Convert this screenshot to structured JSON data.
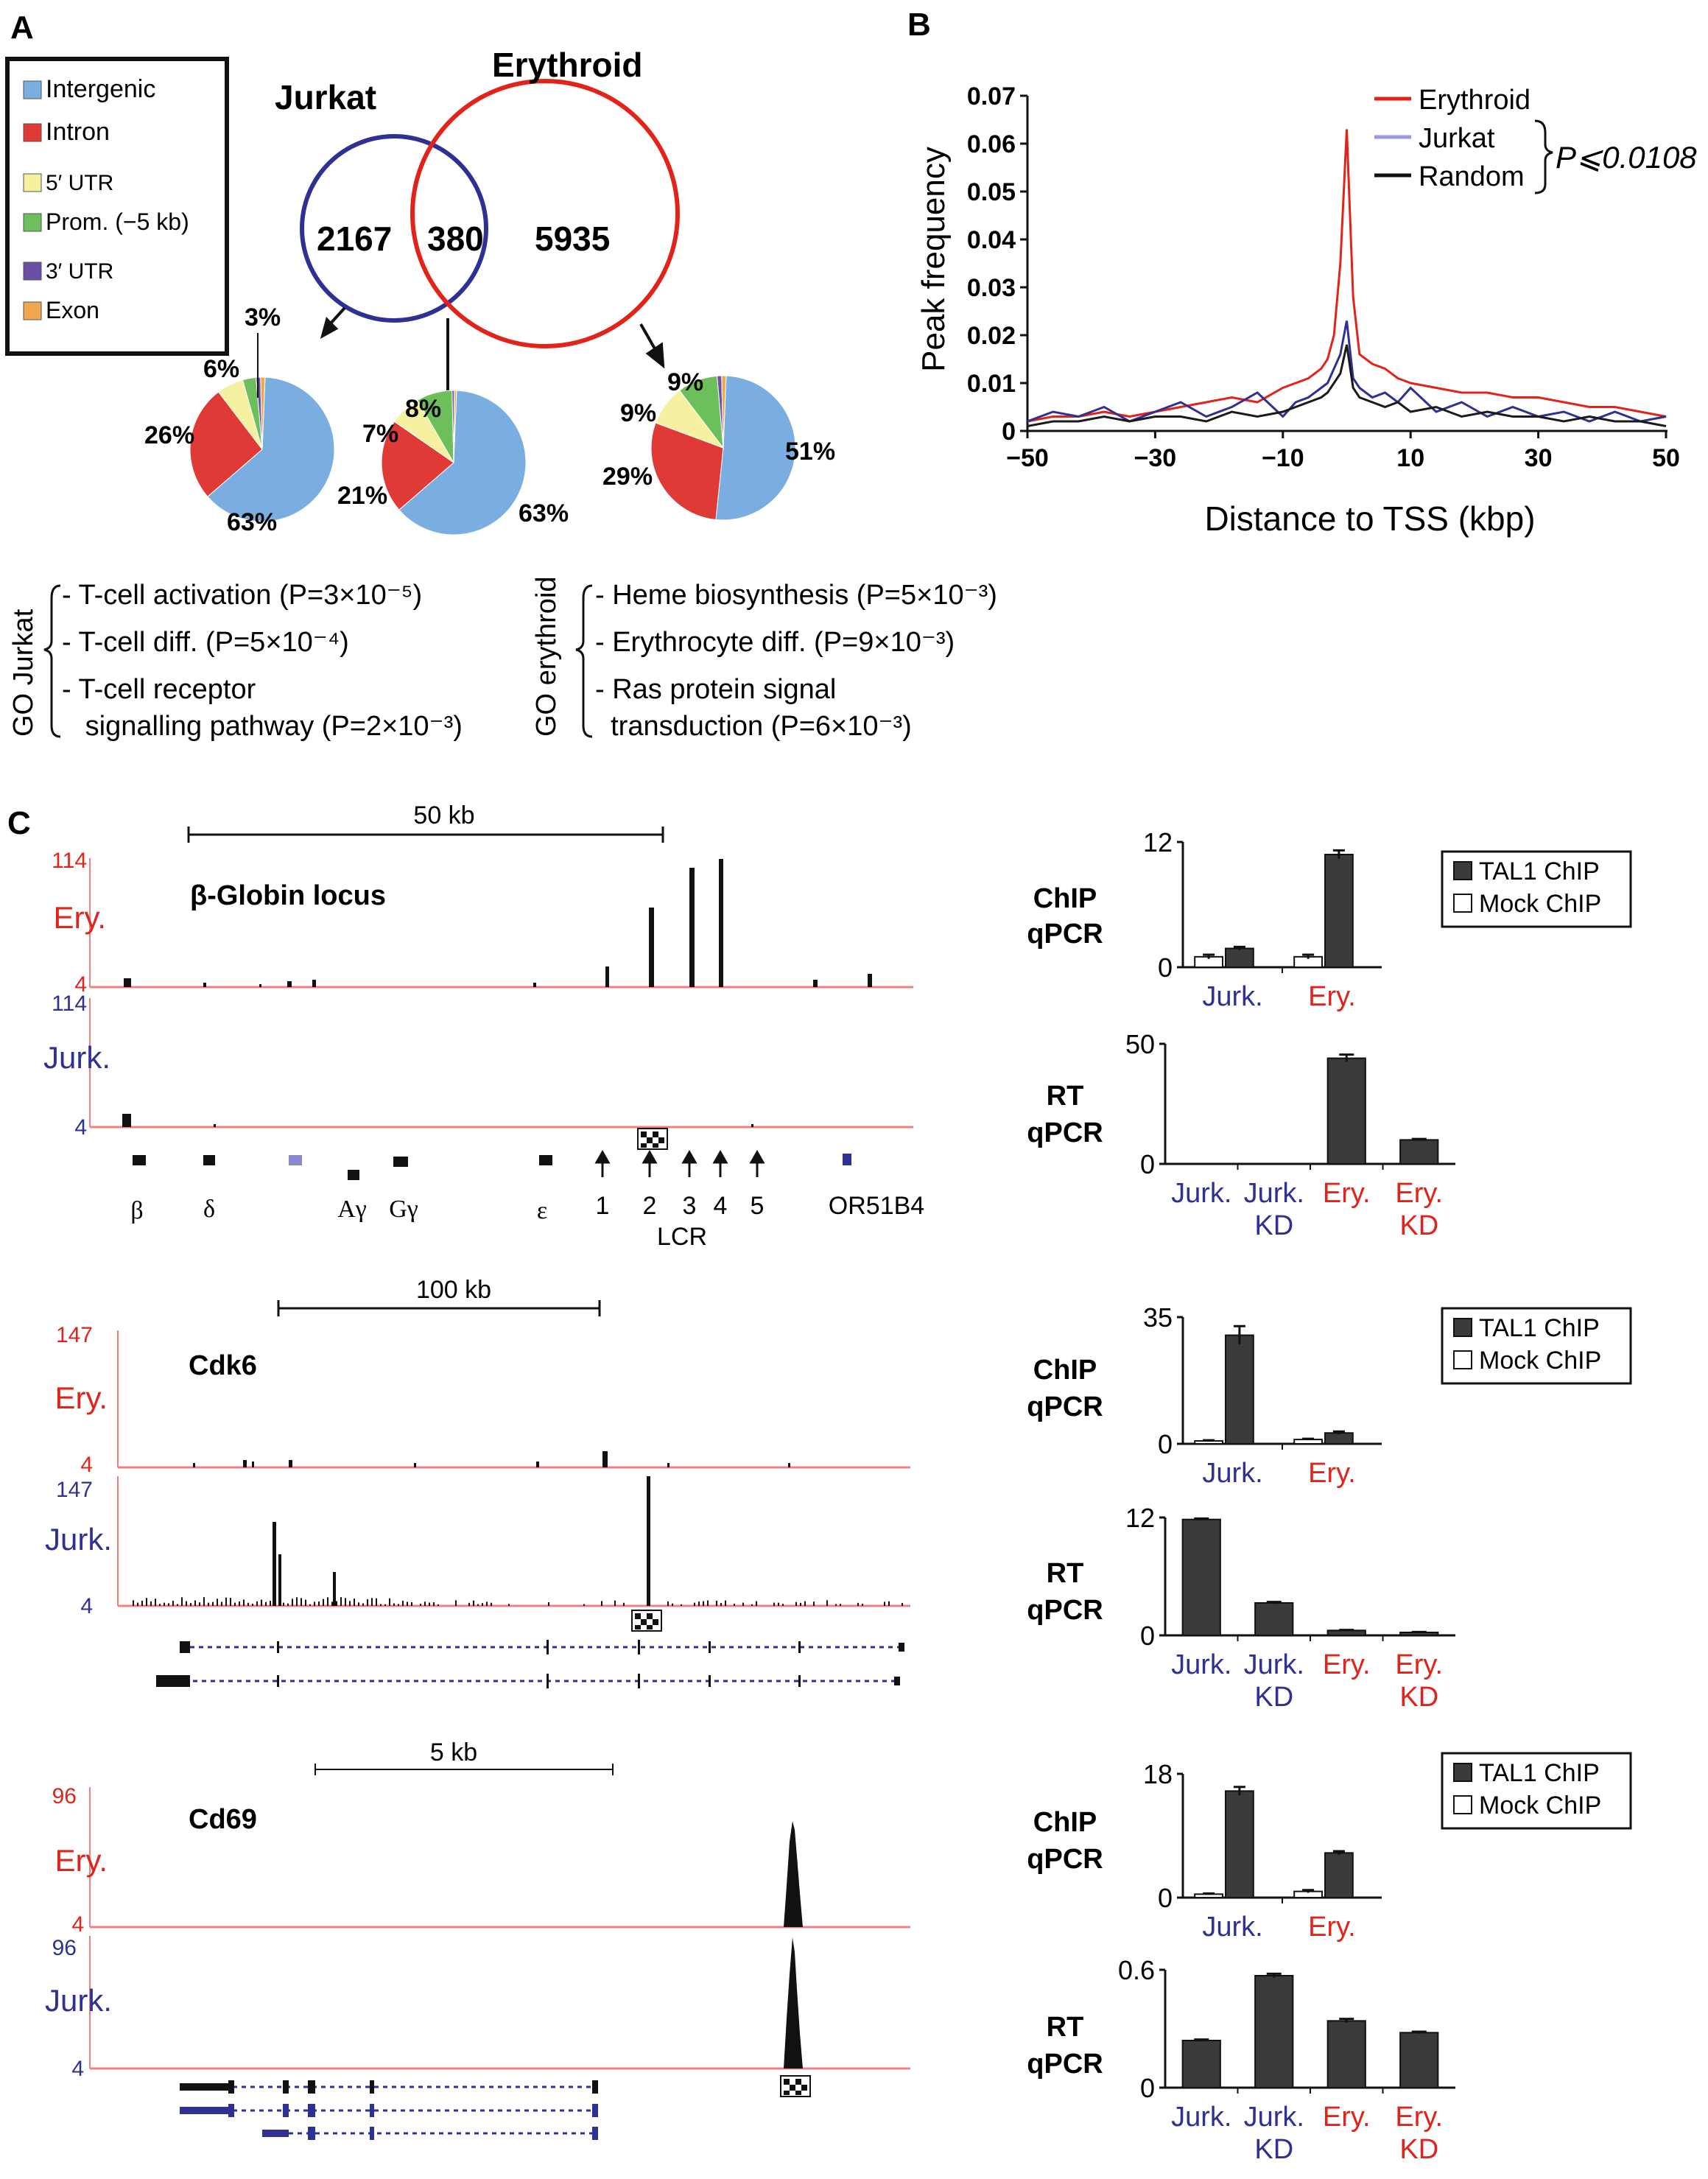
{
  "colors": {
    "intergenic": "#7aaee0",
    "intron": "#e03a36",
    "utr5": "#f5f1a0",
    "prom": "#6cbf5a",
    "utr3": "#6a4fa6",
    "exon": "#f0a850",
    "ery_red": "#e2231a",
    "jurk_blue": "#2e3192",
    "jurk_lav": "#9999dd",
    "dark": "#1a1a1a",
    "bar_dark": "#3a3a3a",
    "track_line": "#f08080"
  },
  "panelA": {
    "letter": "A",
    "legend": [
      {
        "label": "Intergenic",
        "color_key": "intergenic"
      },
      {
        "label": "Intron",
        "color_key": "intron"
      },
      {
        "label": "5′ UTR",
        "color_key": "utr5"
      },
      {
        "label": "Prom. (−5 kb)",
        "color_key": "prom"
      },
      {
        "label": "3′ UTR",
        "color_key": "utr3"
      },
      {
        "label": "Exon",
        "color_key": "exon"
      }
    ],
    "venn": {
      "left_label": "Jurkat",
      "right_label": "Erythroid",
      "left_only": "2167",
      "overlap": "380",
      "right_only": "5935"
    },
    "pies": [
      {
        "name": "jurkat",
        "slices": [
          {
            "key": "intergenic",
            "value": 63
          },
          {
            "key": "intron",
            "value": 26
          },
          {
            "key": "utr5",
            "value": 6
          },
          {
            "key": "prom",
            "value": 3
          },
          {
            "key": "utr3",
            "value": 1
          },
          {
            "key": "exon",
            "value": 1
          }
        ],
        "labels": [
          "63%",
          "26%",
          "6%",
          "3%"
        ]
      },
      {
        "name": "overlap",
        "slices": [
          {
            "key": "intergenic",
            "value": 63
          },
          {
            "key": "intron",
            "value": 21
          },
          {
            "key": "utr5",
            "value": 7
          },
          {
            "key": "prom",
            "value": 8
          },
          {
            "key": "utr3",
            "value": 0.5
          },
          {
            "key": "exon",
            "value": 0.5
          }
        ],
        "labels": [
          "63%",
          "21%",
          "7%",
          "8%"
        ]
      },
      {
        "name": "erythroid",
        "slices": [
          {
            "key": "intergenic",
            "value": 51
          },
          {
            "key": "intron",
            "value": 29
          },
          {
            "key": "utr5",
            "value": 9
          },
          {
            "key": "prom",
            "value": 9
          },
          {
            "key": "utr3",
            "value": 1
          },
          {
            "key": "exon",
            "value": 1
          }
        ],
        "labels": [
          "51%",
          "29%",
          "9%",
          "9%"
        ]
      }
    ],
    "go_jurkat": {
      "title": "GO Jurkat",
      "items": [
        "- T-cell activation (P=3×10⁻⁵)",
        "- T-cell diff.  (P=5×10⁻⁴)",
        "- T-cell receptor",
        "   signalling pathway (P=2×10⁻³)"
      ]
    },
    "go_ery": {
      "title": "GO erythroid",
      "items": [
        "- Heme biosynthesis (P=5×10⁻³)",
        "- Erythrocyte diff. (P=9×10⁻³)",
        "- Ras protein signal",
        "  transduction (P=6×10⁻³)"
      ]
    }
  },
  "chart_data": [
    {
      "panel": "B",
      "type": "line",
      "xlabel": "Distance to TSS (kbp)",
      "ylabel": "Peak frequency",
      "xlim": [
        -50,
        50
      ],
      "ylim": [
        0,
        0.07
      ],
      "xticks": [
        "−50",
        "−30",
        "−10",
        "10",
        "30",
        "50"
      ],
      "yticks": [
        "0",
        "0.01",
        "0.02",
        "0.03",
        "0.04",
        "0.05",
        "0.06",
        "0.07"
      ],
      "annotation": "P⩽0.0108",
      "legend_pos": "top-right",
      "x": [
        -50,
        -46,
        -42,
        -38,
        -34,
        -30,
        -26,
        -22,
        -18,
        -14,
        -10,
        -8,
        -6,
        -4,
        -3,
        -2,
        -1,
        0,
        1,
        2,
        4,
        6,
        8,
        10,
        14,
        18,
        22,
        26,
        30,
        34,
        38,
        42,
        46,
        50
      ],
      "series": [
        {
          "name": "Erythroid",
          "color_key": "ery_red",
          "values": [
            0.002,
            0.003,
            0.003,
            0.004,
            0.003,
            0.004,
            0.005,
            0.006,
            0.007,
            0.006,
            0.009,
            0.01,
            0.011,
            0.013,
            0.015,
            0.02,
            0.035,
            0.063,
            0.028,
            0.016,
            0.014,
            0.013,
            0.011,
            0.01,
            0.009,
            0.008,
            0.008,
            0.007,
            0.007,
            0.006,
            0.005,
            0.005,
            0.004,
            0.003
          ]
        },
        {
          "name": "Jurkat",
          "color_key": "jurk_blue",
          "values": [
            0.002,
            0.004,
            0.003,
            0.005,
            0.002,
            0.004,
            0.006,
            0.003,
            0.005,
            0.008,
            0.003,
            0.006,
            0.007,
            0.009,
            0.01,
            0.013,
            0.016,
            0.023,
            0.011,
            0.009,
            0.007,
            0.008,
            0.006,
            0.009,
            0.004,
            0.006,
            0.003,
            0.005,
            0.003,
            0.004,
            0.002,
            0.004,
            0.002,
            0.003
          ]
        },
        {
          "name": "Random",
          "color_key": "dark",
          "values": [
            0.001,
            0.002,
            0.002,
            0.003,
            0.002,
            0.003,
            0.003,
            0.002,
            0.004,
            0.003,
            0.004,
            0.005,
            0.006,
            0.007,
            0.008,
            0.01,
            0.012,
            0.018,
            0.009,
            0.007,
            0.006,
            0.005,
            0.006,
            0.004,
            0.005,
            0.003,
            0.004,
            0.003,
            0.003,
            0.002,
            0.003,
            0.002,
            0.002,
            0.001
          ]
        }
      ]
    },
    {
      "panel": "C",
      "name": "globin_chip",
      "type": "bar",
      "ylabel": "ChIP qPCR",
      "ylim": [
        0,
        12
      ],
      "yticks": [
        "0",
        "12"
      ],
      "categories": [
        "Jurk.",
        "Ery."
      ],
      "series": [
        {
          "name": "TAL1 ChIP",
          "values": [
            1.8,
            10.8
          ],
          "err": [
            0.15,
            0.4
          ]
        },
        {
          "name": "Mock ChIP",
          "values": [
            1.0,
            1.0
          ],
          "err": [
            0.2,
            0.2
          ]
        }
      ]
    },
    {
      "panel": "C",
      "name": "globin_rt",
      "type": "bar",
      "ylabel": "RT qPCR",
      "ylim": [
        0,
        50
      ],
      "yticks": [
        "0",
        "50"
      ],
      "categories": [
        "Jurk.",
        "Jurk. KD",
        "Ery.",
        "Ery. KD"
      ],
      "values": [
        0,
        0,
        44,
        10
      ],
      "err": [
        0,
        0,
        1.5,
        0.4
      ]
    },
    {
      "panel": "C",
      "name": "cdk6_chip",
      "type": "bar",
      "ylabel": "ChIP qPCR",
      "ylim": [
        0,
        35
      ],
      "yticks": [
        "0",
        "35"
      ],
      "categories": [
        "Jurk.",
        "Ery."
      ],
      "series": [
        {
          "name": "TAL1 ChIP",
          "values": [
            30,
            3
          ],
          "err": [
            2.5,
            0.4
          ]
        },
        {
          "name": "Mock ChIP",
          "values": [
            0.8,
            1.2
          ],
          "err": [
            0.2,
            0.2
          ]
        }
      ]
    },
    {
      "panel": "C",
      "name": "cdk6_rt",
      "type": "bar",
      "ylabel": "RT qPCR",
      "ylim": [
        0,
        12
      ],
      "yticks": [
        "0",
        "12"
      ],
      "categories": [
        "Jurk.",
        "Jurk. KD",
        "Ery.",
        "Ery. KD"
      ],
      "values": [
        11.8,
        3.3,
        0.5,
        0.3
      ],
      "err": [
        0.1,
        0.1,
        0.05,
        0.05
      ]
    },
    {
      "panel": "C",
      "name": "cd69_chip",
      "type": "bar",
      "ylabel": "ChIP qPCR",
      "ylim": [
        0,
        18
      ],
      "yticks": [
        "0",
        "18"
      ],
      "categories": [
        "Jurk.",
        "Ery."
      ],
      "series": [
        {
          "name": "TAL1 ChIP",
          "values": [
            15.5,
            6.5
          ],
          "err": [
            0.6,
            0.25
          ]
        },
        {
          "name": "Mock ChIP",
          "values": [
            0.5,
            0.9
          ],
          "err": [
            0.1,
            0.2
          ]
        }
      ]
    },
    {
      "panel": "C",
      "name": "cd69_rt",
      "type": "bar",
      "ylabel": "RT qPCR",
      "ylim": [
        0,
        0.6
      ],
      "yticks": [
        "0",
        "0.6"
      ],
      "categories": [
        "Jurk.",
        "Jurk. KD",
        "Ery.",
        "Ery. KD"
      ],
      "values": [
        0.24,
        0.57,
        0.34,
        0.28
      ],
      "err": [
        0.005,
        0.01,
        0.01,
        0.005
      ]
    }
  ],
  "panelC": {
    "letter": "C",
    "ery_label": "Ery.",
    "jurk_label": "Jurk.",
    "legend_tal1": "TAL1 ChIP",
    "legend_mock": "Mock ChIP",
    "chip_l1": "ChIP",
    "chip_l2": "qPCR",
    "rt_l1": "RT",
    "rt_l2": "qPCR",
    "kd": "KD",
    "loci": [
      {
        "name": "β-Globin locus",
        "scale": "50 kb",
        "ymax": "114",
        "ymin": "4",
        "genes": [
          "β",
          "δ",
          "Aγ",
          "Gγ",
          "ε",
          "1",
          "2",
          "3",
          "4",
          "5",
          "OR51B4"
        ],
        "lcr": "LCR"
      },
      {
        "name": "Cdk6",
        "scale": "100 kb",
        "ymax": "147",
        "ymin": "4"
      },
      {
        "name": "Cd69",
        "scale": "5 kb",
        "ymax": "96",
        "ymin": "4"
      }
    ]
  },
  "panelB": {
    "letter": "B"
  }
}
